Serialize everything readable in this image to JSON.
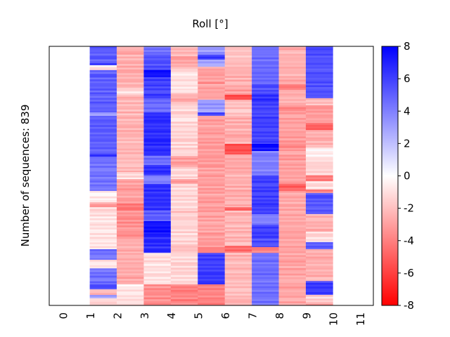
{
  "chart_data": {
    "type": "heatmap",
    "title": "Roll [°]",
    "xlabel": "",
    "ylabel": "Number of sequences: 839",
    "n_rows": 839,
    "xlim": [
      -0.5,
      11.5
    ],
    "x_ticks": [
      "0",
      "1",
      "2",
      "3",
      "4",
      "5",
      "6",
      "7",
      "8",
      "9",
      "10",
      "11"
    ],
    "colormap": "bwr",
    "color_min": "#ff0000",
    "color_mid": "#ffffff",
    "color_max": "#0000ff",
    "vlim": [
      -8,
      8
    ],
    "colorbar_ticks": [
      "8",
      "6",
      "4",
      "2",
      "0",
      "-2",
      "-4",
      "-6",
      "-8"
    ],
    "colorbar_tick_values": [
      8,
      6,
      4,
      2,
      0,
      -2,
      -4,
      -6,
      -8
    ],
    "columns": [
      {
        "x": 1,
        "blocks": [
          [
            0,
            55,
            5
          ],
          [
            55,
            61,
            7
          ],
          [
            61,
            77,
            -0.8
          ],
          [
            77,
            214,
            5
          ],
          [
            214,
            225,
            3
          ],
          [
            225,
            350,
            5
          ],
          [
            350,
            357,
            7
          ],
          [
            357,
            468,
            4.5
          ],
          [
            468,
            505,
            -0.7
          ],
          [
            505,
            521,
            -3
          ],
          [
            521,
            657,
            -1
          ],
          [
            657,
            691,
            4.5
          ],
          [
            691,
            719,
            -1
          ],
          [
            719,
            771,
            4.5
          ],
          [
            771,
            787,
            5.5
          ],
          [
            787,
            805,
            -2
          ],
          [
            805,
            816,
            3
          ],
          [
            816,
            839,
            -1.5
          ]
        ]
      },
      {
        "x": 2,
        "blocks": [
          [
            0,
            9,
            -2
          ],
          [
            9,
            134,
            -2.5
          ],
          [
            134,
            157,
            -0.8
          ],
          [
            157,
            407,
            -2.3
          ],
          [
            407,
            430,
            -1
          ],
          [
            430,
            509,
            -3
          ],
          [
            509,
            532,
            -4.5
          ],
          [
            532,
            623,
            -3.5
          ],
          [
            623,
            669,
            -2.5
          ],
          [
            669,
            771,
            -2.8
          ],
          [
            771,
            782,
            -0.3
          ],
          [
            782,
            839,
            -1
          ]
        ]
      },
      {
        "x": 3,
        "blocks": [
          [
            0,
            27,
            4.5
          ],
          [
            27,
            77,
            5.5
          ],
          [
            77,
            100,
            7.5
          ],
          [
            100,
            168,
            6
          ],
          [
            168,
            214,
            4.5
          ],
          [
            214,
            355,
            6.5
          ],
          [
            355,
            384,
            4.5
          ],
          [
            384,
            418,
            6.5
          ],
          [
            418,
            446,
            4
          ],
          [
            446,
            532,
            6.5
          ],
          [
            532,
            566,
            5
          ],
          [
            566,
            612,
            7.5
          ],
          [
            612,
            669,
            6.5
          ],
          [
            669,
            771,
            -1
          ],
          [
            771,
            839,
            -3.5
          ]
        ]
      },
      {
        "x": 4,
        "blocks": [
          [
            0,
            32,
            -2
          ],
          [
            32,
            66,
            -2.8
          ],
          [
            66,
            77,
            -2
          ],
          [
            77,
            146,
            -1
          ],
          [
            146,
            157,
            -1.5
          ],
          [
            157,
            180,
            -3
          ],
          [
            180,
            214,
            -1.2
          ],
          [
            214,
            355,
            -1.2
          ],
          [
            355,
            391,
            -3
          ],
          [
            391,
            430,
            -1.2
          ],
          [
            430,
            446,
            -3
          ],
          [
            446,
            532,
            -1.2
          ],
          [
            532,
            539,
            -2.5
          ],
          [
            539,
            646,
            -1.2
          ],
          [
            646,
            669,
            -2
          ],
          [
            669,
            771,
            -1.2
          ],
          [
            771,
            839,
            -4
          ]
        ]
      },
      {
        "x": 5,
        "blocks": [
          [
            0,
            27,
            3.2
          ],
          [
            27,
            43,
            6
          ],
          [
            43,
            66,
            3.2
          ],
          [
            66,
            118,
            -3
          ],
          [
            118,
            121,
            -4
          ],
          [
            121,
            173,
            -3
          ],
          [
            173,
            214,
            3.2
          ],
          [
            214,
            225,
            6
          ],
          [
            225,
            650,
            -3
          ],
          [
            650,
            669,
            -4
          ],
          [
            669,
            771,
            6
          ],
          [
            771,
            839,
            -4
          ]
        ]
      },
      {
        "x": 6,
        "blocks": [
          [
            0,
            66,
            -2
          ],
          [
            66,
            134,
            -2.5
          ],
          [
            134,
            157,
            -3
          ],
          [
            157,
            173,
            -5.5
          ],
          [
            173,
            225,
            -2
          ],
          [
            225,
            316,
            -2.5
          ],
          [
            316,
            350,
            -5.5
          ],
          [
            350,
            521,
            -2.5
          ],
          [
            521,
            532,
            -5
          ],
          [
            532,
            646,
            -2.3
          ],
          [
            646,
            669,
            -4.5
          ],
          [
            669,
            839,
            -2.3
          ]
        ]
      },
      {
        "x": 7,
        "blocks": [
          [
            0,
            123,
            4.5
          ],
          [
            123,
            157,
            5.5
          ],
          [
            157,
            180,
            6.5
          ],
          [
            180,
            316,
            6
          ],
          [
            316,
            339,
            7.5
          ],
          [
            339,
            418,
            4
          ],
          [
            418,
            543,
            6
          ],
          [
            543,
            578,
            4
          ],
          [
            578,
            623,
            6
          ],
          [
            623,
            650,
            5.5
          ],
          [
            650,
            669,
            -4
          ],
          [
            669,
            839,
            4.5
          ]
        ]
      },
      {
        "x": 8,
        "blocks": [
          [
            0,
            123,
            -2.5
          ],
          [
            123,
            141,
            -4
          ],
          [
            141,
            191,
            -2.5
          ],
          [
            191,
            214,
            -3.5
          ],
          [
            214,
            305,
            -3
          ],
          [
            305,
            339,
            -3.5
          ],
          [
            339,
            446,
            -3
          ],
          [
            446,
            468,
            -5
          ],
          [
            468,
            514,
            -2.5
          ],
          [
            514,
            600,
            -2.8
          ],
          [
            600,
            646,
            -3
          ],
          [
            646,
            839,
            -2.8
          ]
        ]
      },
      {
        "x": 9,
        "blocks": [
          [
            0,
            168,
            5.5
          ],
          [
            168,
            191,
            -2
          ],
          [
            191,
            248,
            -3
          ],
          [
            248,
            271,
            -5
          ],
          [
            271,
            327,
            -2.5
          ],
          [
            327,
            362,
            -0.5
          ],
          [
            362,
            418,
            -1.5
          ],
          [
            418,
            437,
            -4
          ],
          [
            437,
            464,
            -1
          ],
          [
            464,
            475,
            -4
          ],
          [
            475,
            543,
            5.5
          ],
          [
            543,
            600,
            -2.5
          ],
          [
            600,
            634,
            -1
          ],
          [
            634,
            657,
            5
          ],
          [
            657,
            760,
            -2.5
          ],
          [
            760,
            805,
            6
          ],
          [
            805,
            828,
            -1.5
          ],
          [
            828,
            839,
            -3
          ]
        ]
      }
    ]
  }
}
